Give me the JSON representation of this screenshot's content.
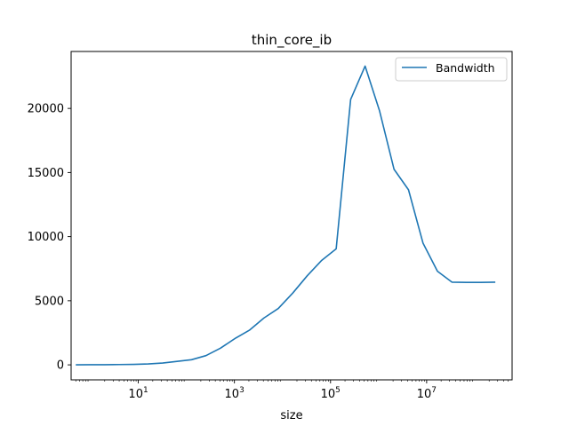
{
  "chart_data": {
    "type": "line",
    "title": "thin_core_ib",
    "xlabel": "size",
    "ylabel": "",
    "xscale": "log",
    "xlim": [
      0.4,
      600000000
    ],
    "ylim": [
      -1170,
      24440
    ],
    "x_ticks": [
      {
        "value": 10,
        "base": "10",
        "exp": "1"
      },
      {
        "value": 1000,
        "base": "10",
        "exp": "3"
      },
      {
        "value": 100000,
        "base": "10",
        "exp": "5"
      },
      {
        "value": 10000000,
        "base": "10",
        "exp": "7"
      }
    ],
    "y_ticks": [
      0,
      5000,
      10000,
      15000,
      20000
    ],
    "y_tick_labels": [
      "0",
      "5000",
      "10000",
      "15000",
      "20000"
    ],
    "legend": {
      "position": "top-right",
      "entries": [
        "Bandwidth"
      ]
    },
    "grid": false,
    "colors": {
      "series": "#1f77b4"
    },
    "series": [
      {
        "name": "Bandwidth",
        "x": [
          0.5,
          1,
          2,
          4,
          8,
          16,
          32,
          64,
          128,
          256,
          512,
          1024,
          2048,
          4096,
          8192,
          16384,
          32768,
          65536,
          131072,
          262144,
          524288,
          1048576,
          2097152,
          4194304,
          8388608,
          16777216,
          33554432,
          67108864,
          134217728,
          268435456
        ],
        "values": [
          5,
          8,
          12,
          25,
          40,
          70,
          140,
          270,
          400,
          720,
          1300,
          2050,
          2700,
          3650,
          4400,
          5600,
          6950,
          8150,
          9050,
          20700,
          23300,
          19800,
          15250,
          13650,
          9500,
          7300,
          6450,
          6430,
          6430,
          6450
        ]
      }
    ]
  }
}
